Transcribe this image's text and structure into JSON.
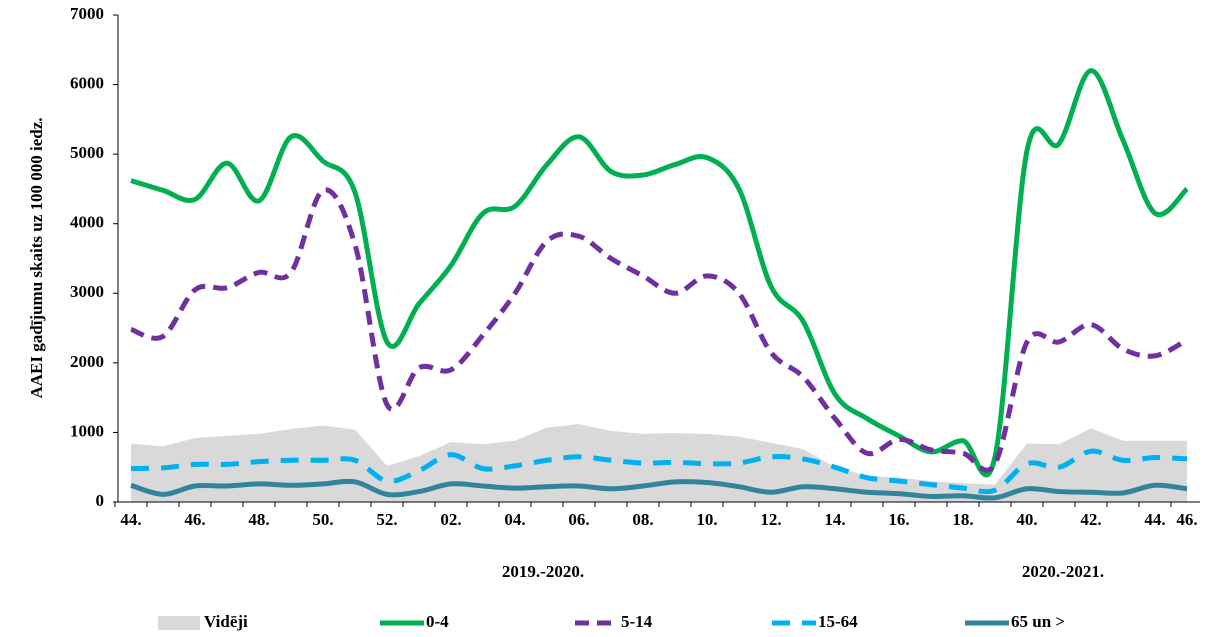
{
  "chart_data": {
    "type": "line",
    "y_label": "AAEI gadījumu skaits uz 100 000 iedz.",
    "categories": [
      "44.",
      null,
      "46.",
      null,
      "48.",
      null,
      "50.",
      null,
      "52.",
      null,
      "02.",
      null,
      "04.",
      null,
      "06.",
      null,
      "08.",
      null,
      "10.",
      null,
      "12.",
      null,
      "14.",
      null,
      "16.",
      null,
      "18.",
      null,
      "40.",
      null,
      "42.",
      null,
      "44.",
      "46."
    ],
    "groups": [
      "2019.-2020.",
      "2020.-2021."
    ],
    "ylim": [
      0,
      7000
    ],
    "yticks": [
      0,
      1000,
      2000,
      3000,
      4000,
      5000,
      6000,
      7000
    ],
    "legend": "bottom",
    "series": [
      {
        "name": "Vidēji",
        "color": "#d9d9d9",
        "kind": "area",
        "values": [
          840,
          800,
          920,
          950,
          980,
          1050,
          1100,
          1040,
          520,
          660,
          860,
          830,
          880,
          1070,
          1120,
          1020,
          980,
          990,
          980,
          940,
          850,
          760,
          500,
          380,
          350,
          300,
          270,
          250,
          840,
          830,
          1060,
          880,
          880,
          880
        ]
      },
      {
        "name": "0-4",
        "color": "#00b050",
        "kind": "solid",
        "values": [
          4620,
          4480,
          4350,
          4870,
          4330,
          5250,
          4900,
          4450,
          2300,
          2850,
          3400,
          4150,
          4250,
          4850,
          5250,
          4750,
          4700,
          4850,
          4950,
          4500,
          3100,
          2600,
          1550,
          1200,
          950,
          720,
          880,
          650,
          5050,
          5150,
          6200,
          5200,
          4150,
          4500
        ]
      },
      {
        "name": "5-14",
        "color": "#7030a0",
        "kind": "dash",
        "values": [
          2480,
          2380,
          3050,
          3080,
          3300,
          3300,
          4480,
          3700,
          1400,
          1930,
          1900,
          2400,
          3000,
          3750,
          3820,
          3500,
          3250,
          3000,
          3250,
          3000,
          2150,
          1800,
          1200,
          700,
          900,
          750,
          700,
          550,
          2300,
          2300,
          2550,
          2200,
          2100,
          2330
        ]
      },
      {
        "name": "15-64",
        "color": "#00b0f0",
        "kind": "longdash",
        "values": [
          480,
          490,
          540,
          540,
          580,
          600,
          600,
          600,
          300,
          450,
          680,
          480,
          520,
          600,
          650,
          600,
          560,
          570,
          550,
          560,
          650,
          620,
          500,
          350,
          300,
          250,
          200,
          170,
          550,
          500,
          730,
          600,
          640,
          620
        ]
      },
      {
        "name": "65 un >",
        "color": "#31849b",
        "kind": "solid",
        "values": [
          240,
          110,
          230,
          230,
          260,
          240,
          260,
          290,
          110,
          150,
          260,
          230,
          200,
          220,
          230,
          190,
          230,
          290,
          280,
          220,
          140,
          220,
          190,
          140,
          120,
          80,
          90,
          60,
          190,
          150,
          140,
          130,
          240,
          190
        ]
      }
    ]
  }
}
